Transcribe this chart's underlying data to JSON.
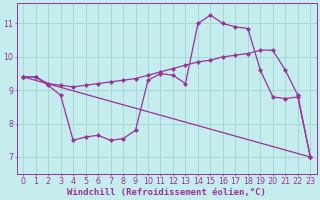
{
  "background_color": "#c6eded",
  "grid_color": "#a0d4d4",
  "line_color": "#993399",
  "marker": "D",
  "marker_size": 2.2,
  "linewidth": 0.9,
  "xlim": [
    -0.5,
    23.5
  ],
  "ylim": [
    6.5,
    11.6
  ],
  "xticks": [
    0,
    1,
    2,
    3,
    4,
    5,
    6,
    7,
    8,
    9,
    10,
    11,
    12,
    13,
    14,
    15,
    16,
    17,
    18,
    19,
    20,
    21,
    22,
    23
  ],
  "yticks": [
    7,
    8,
    9,
    10,
    11
  ],
  "xlabel": "Windchill (Refroidissement éolien,°C)",
  "xlabel_fontsize": 6.5,
  "tick_fontsize": 5.8,
  "series": [
    {
      "x": [
        0,
        1,
        2,
        3,
        4,
        5,
        6,
        7,
        8,
        9,
        10,
        11,
        12,
        13,
        14,
        15,
        16,
        17,
        18,
        19,
        20,
        21,
        22,
        23
      ],
      "y": [
        9.4,
        9.4,
        9.15,
        8.85,
        7.5,
        7.6,
        7.65,
        7.5,
        7.55,
        7.8,
        9.3,
        9.5,
        9.45,
        9.2,
        11.0,
        11.25,
        11.0,
        10.9,
        10.85,
        9.6,
        8.8,
        8.75,
        8.8,
        7.0
      ]
    },
    {
      "x": [
        0,
        1,
        2,
        3,
        4,
        5,
        6,
        7,
        8,
        9,
        10,
        11,
        12,
        13,
        14,
        15,
        16,
        17,
        18,
        19,
        20,
        21,
        22,
        23
      ],
      "y": [
        9.4,
        9.4,
        9.2,
        9.15,
        9.1,
        9.15,
        9.2,
        9.25,
        9.3,
        9.35,
        9.45,
        9.55,
        9.65,
        9.75,
        9.85,
        9.9,
        10.0,
        10.05,
        10.1,
        10.2,
        10.2,
        9.6,
        8.85,
        7.0
      ]
    },
    {
      "x": [
        0,
        23
      ],
      "y": [
        9.4,
        7.0
      ]
    }
  ]
}
